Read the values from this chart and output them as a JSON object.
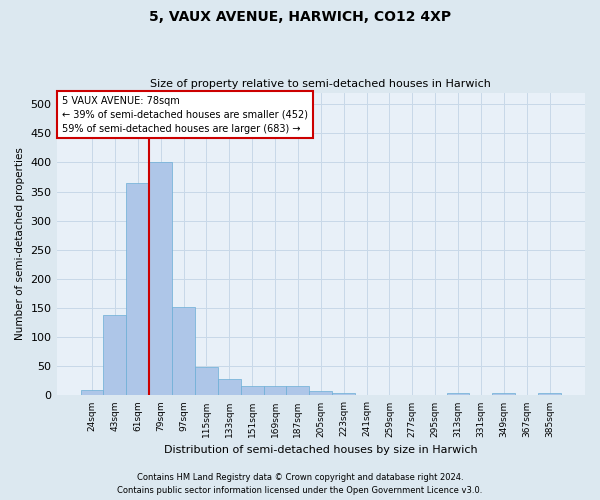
{
  "title": "5, VAUX AVENUE, HARWICH, CO12 4XP",
  "subtitle": "Size of property relative to semi-detached houses in Harwich",
  "xlabel": "Distribution of semi-detached houses by size in Harwich",
  "ylabel": "Number of semi-detached properties",
  "footer_line1": "Contains HM Land Registry data © Crown copyright and database right 2024.",
  "footer_line2": "Contains public sector information licensed under the Open Government Licence v3.0.",
  "annotation_title": "5 VAUX AVENUE: 78sqm",
  "annotation_line1": "← 39% of semi-detached houses are smaller (452)",
  "annotation_line2": "59% of semi-detached houses are larger (683) →",
  "bin_labels": [
    "24sqm",
    "43sqm",
    "61sqm",
    "79sqm",
    "97sqm",
    "115sqm",
    "133sqm",
    "151sqm",
    "169sqm",
    "187sqm",
    "205sqm",
    "223sqm",
    "241sqm",
    "259sqm",
    "277sqm",
    "295sqm",
    "313sqm",
    "331sqm",
    "349sqm",
    "367sqm",
    "385sqm"
  ],
  "bin_values": [
    10,
    138,
    365,
    400,
    152,
    48,
    28,
    17,
    17,
    17,
    8,
    5,
    0,
    0,
    0,
    0,
    5,
    0,
    5,
    0,
    5
  ],
  "bar_color": "#aec6e8",
  "bar_edge_color": "#6baed6",
  "vline_color": "#cc0000",
  "vline_x": 2.5,
  "annotation_box_edgecolor": "#cc0000",
  "annotation_bg_color": "#ffffff",
  "ylim": [
    0,
    520
  ],
  "yticks": [
    0,
    50,
    100,
    150,
    200,
    250,
    300,
    350,
    400,
    450,
    500
  ],
  "grid_color": "#c8d8e8",
  "background_color": "#dce8f0",
  "plot_bg_color": "#e8f0f8"
}
